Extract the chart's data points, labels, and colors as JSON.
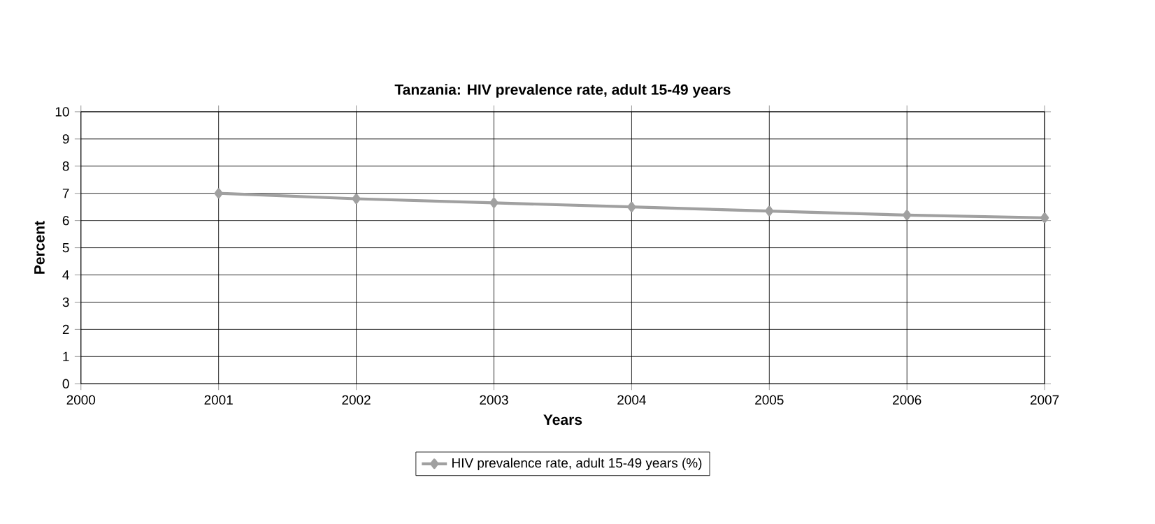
{
  "chart_data": {
    "type": "line",
    "title": "Tanzania: HIV prevalence rate, adult 15-49 years",
    "xlabel": "Years",
    "ylabel": "Percent",
    "x": [
      2001,
      2002,
      2003,
      2004,
      2005,
      2006,
      2007
    ],
    "series": [
      {
        "name": "HIV prevalence rate, adult 15-49 years (%)",
        "color": "#a0a0a0",
        "values": [
          7.0,
          6.8,
          6.65,
          6.5,
          6.35,
          6.2,
          6.1
        ]
      }
    ],
    "xlim": [
      2000,
      2007
    ],
    "xticks": [
      2000,
      2001,
      2002,
      2003,
      2004,
      2005,
      2006,
      2007
    ],
    "ylim": [
      0,
      10
    ],
    "yticks": [
      0,
      1,
      2,
      3,
      4,
      5,
      6,
      7,
      8,
      9,
      10
    ],
    "grid": true,
    "legend": "bottom",
    "marker": "diamond",
    "line_style": "solid"
  }
}
